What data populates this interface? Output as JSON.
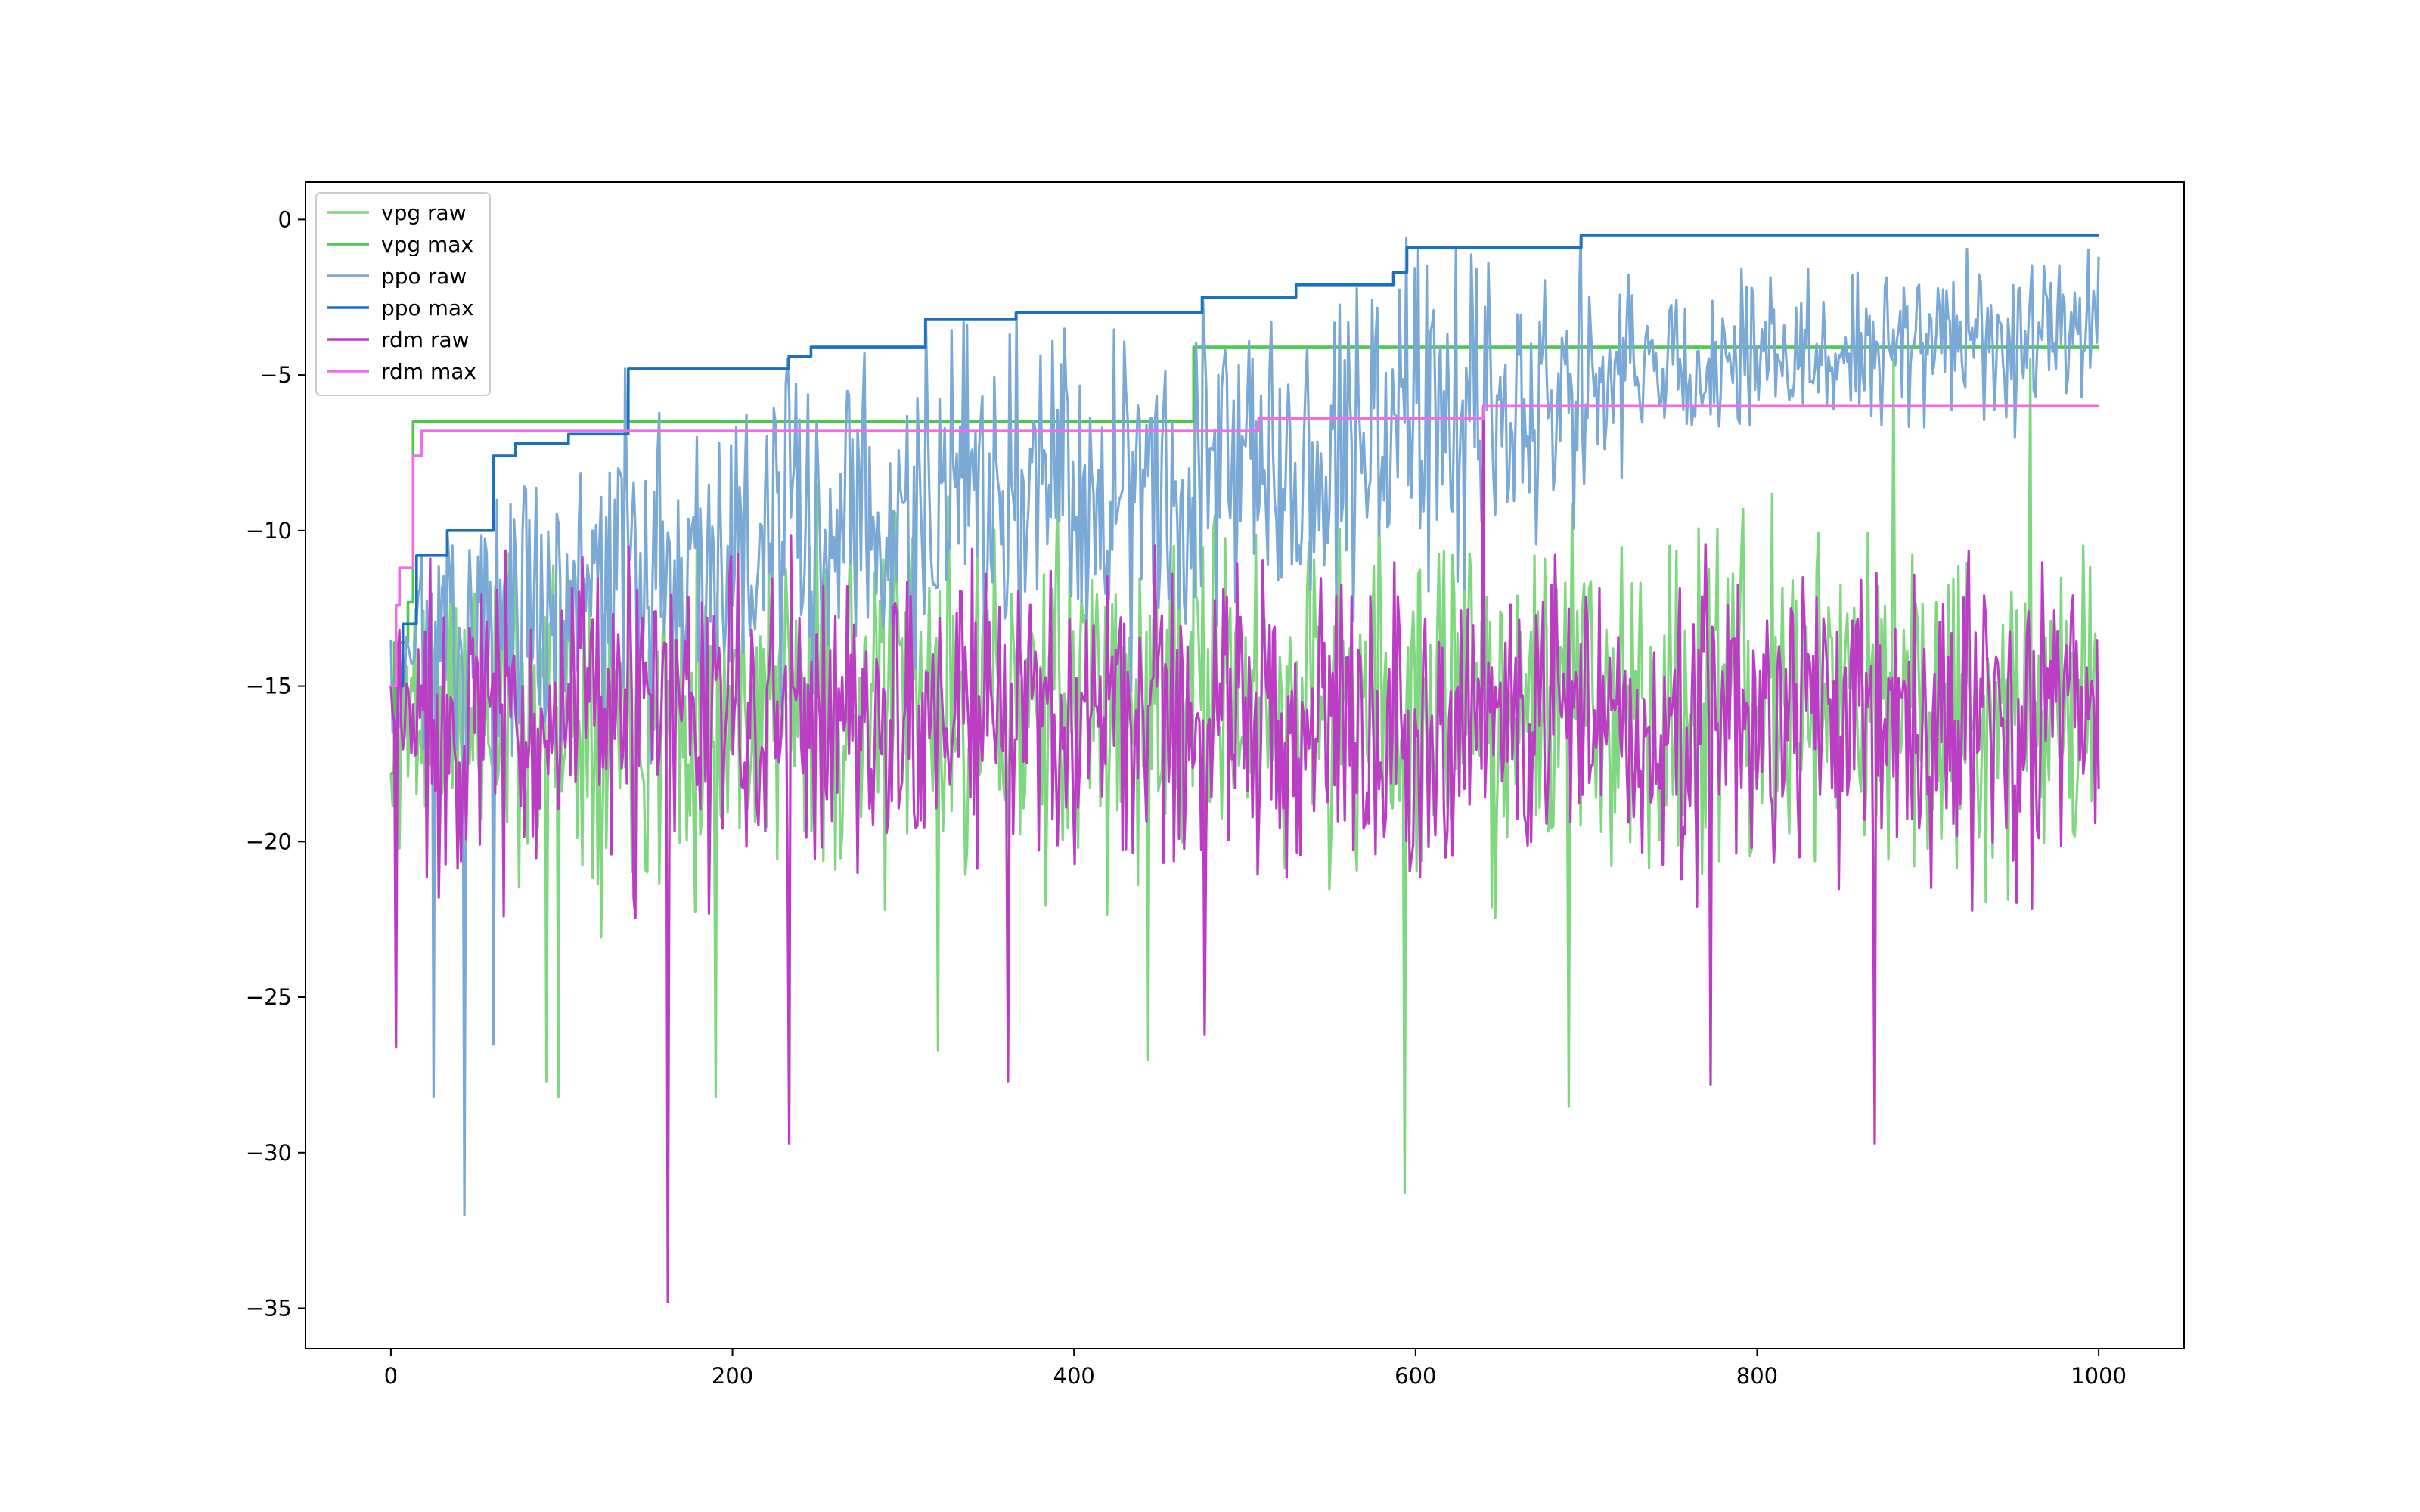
{
  "chart_data": {
    "type": "line",
    "title": "",
    "xlabel": "",
    "ylabel": "",
    "xlim": [
      -50,
      1050
    ],
    "ylim": [
      -36.3,
      1.2
    ],
    "x_ticks": [
      0,
      200,
      400,
      600,
      800,
      1000
    ],
    "y_ticks": [
      0,
      -5,
      -10,
      -15,
      -20,
      -25,
      -30,
      -35
    ],
    "x_tick_labels": [
      "0",
      "200",
      "400",
      "600",
      "800",
      "1000"
    ],
    "y_tick_labels": [
      "0",
      "−5",
      "−10",
      "−15",
      "−20",
      "−25",
      "−30",
      "−35"
    ],
    "legend_position": "upper-left",
    "n_points": 1000,
    "series": [
      {
        "name": "vpg raw",
        "label": "vpg raw",
        "color": "#7fd77f",
        "kind": "raw",
        "stats": {
          "mean": -15.5,
          "amplitude": 5.0,
          "min": -31.3,
          "max": -4.1,
          "seed": 11
        },
        "anchor_points": [
          [
            0,
            -17.8
          ],
          [
            91,
            -27.7
          ],
          [
            98,
            -28.2
          ],
          [
            190,
            -28.2
          ],
          [
            320,
            -26.7
          ],
          [
            443,
            -27.0
          ],
          [
            470,
            -4.1
          ],
          [
            594,
            -31.3
          ],
          [
            690,
            -28.5
          ],
          [
            880,
            -4.5
          ],
          [
            960,
            -4.5
          ]
        ]
      },
      {
        "name": "vpg max",
        "label": "vpg max",
        "color": "#4cc94c",
        "kind": "max",
        "steps": [
          [
            0,
            -17.8
          ],
          [
            2,
            -13.6
          ],
          [
            10,
            -12.3
          ],
          [
            13,
            -6.5
          ],
          [
            470,
            -4.1
          ],
          [
            1000,
            -4.1
          ]
        ]
      },
      {
        "name": "ppo raw",
        "label": "ppo raw",
        "color": "#7aa9d6",
        "kind": "raw",
        "stats": {
          "mean": -13.0,
          "amplitude": 5.0,
          "min": -32.0,
          "max": -0.5,
          "seed": 23
        },
        "anchor_points": [
          [
            0,
            -13.5
          ],
          [
            25,
            -28.2
          ],
          [
            43,
            -32.0
          ],
          [
            60,
            -26.5
          ],
          [
            137,
            -4.8
          ],
          [
            232,
            -4.5
          ],
          [
            313,
            -3.2
          ],
          [
            366,
            -3.0
          ],
          [
            475,
            -2.5
          ],
          [
            595,
            -0.6
          ],
          [
            697,
            -0.5
          ],
          [
            1000,
            -1.2
          ]
        ]
      },
      {
        "name": "ppo max",
        "label": "ppo max",
        "color": "#1f6fc1",
        "kind": "max",
        "steps": [
          [
            0,
            -15.0
          ],
          [
            7,
            -13.0
          ],
          [
            15,
            -10.8
          ],
          [
            33,
            -10.0
          ],
          [
            60,
            -7.6
          ],
          [
            73,
            -7.2
          ],
          [
            104,
            -6.9
          ],
          [
            139,
            -4.8
          ],
          [
            233,
            -4.4
          ],
          [
            246,
            -4.1
          ],
          [
            313,
            -3.2
          ],
          [
            366,
            -3.0
          ],
          [
            475,
            -2.5
          ],
          [
            530,
            -2.1
          ],
          [
            587,
            -1.7
          ],
          [
            595,
            -0.9
          ],
          [
            697,
            -0.5
          ],
          [
            1000,
            -0.5
          ]
        ]
      },
      {
        "name": "rdm raw",
        "label": "rdm raw",
        "color": "#bb3dc4",
        "kind": "raw",
        "stats": {
          "mean": -16.0,
          "amplitude": 4.6,
          "min": -34.8,
          "max": -6.0,
          "seed": 37
        },
        "anchor_points": [
          [
            0,
            -15.0
          ],
          [
            3,
            -26.6
          ],
          [
            162,
            -34.8
          ],
          [
            233,
            -29.7
          ],
          [
            361,
            -27.7
          ],
          [
            476,
            -26.2
          ],
          [
            640,
            -6.0
          ],
          [
            773,
            -27.8
          ],
          [
            869,
            -29.7
          ],
          [
            1000,
            -18.3
          ]
        ]
      },
      {
        "name": "rdm max",
        "label": "rdm max",
        "color": "#ee6ee8",
        "kind": "max",
        "steps": [
          [
            0,
            -15.0
          ],
          [
            3,
            -12.4
          ],
          [
            5,
            -11.2
          ],
          [
            13,
            -7.6
          ],
          [
            18,
            -6.8
          ],
          [
            508,
            -6.4
          ],
          [
            640,
            -6.0
          ],
          [
            1000,
            -6.0
          ]
        ]
      }
    ]
  }
}
